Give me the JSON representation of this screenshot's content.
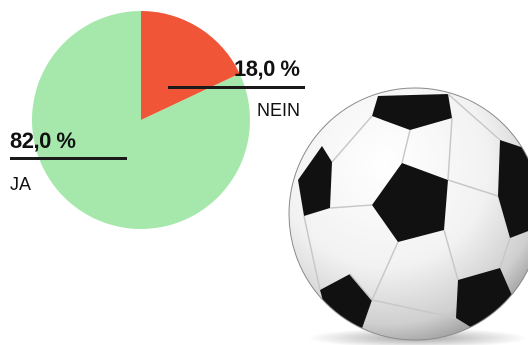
{
  "chart_data": {
    "type": "pie",
    "title": "",
    "slices": [
      {
        "label": "NEIN",
        "value": 18.0,
        "display": "18,0 %",
        "color": "#ef5536"
      },
      {
        "label": "JA",
        "value": 82.0,
        "display": "82,0 %",
        "color": "#a6e8ac"
      }
    ],
    "start": "12 o'clock",
    "direction": "clockwise",
    "decoration": "soccer-ball-illustration"
  }
}
